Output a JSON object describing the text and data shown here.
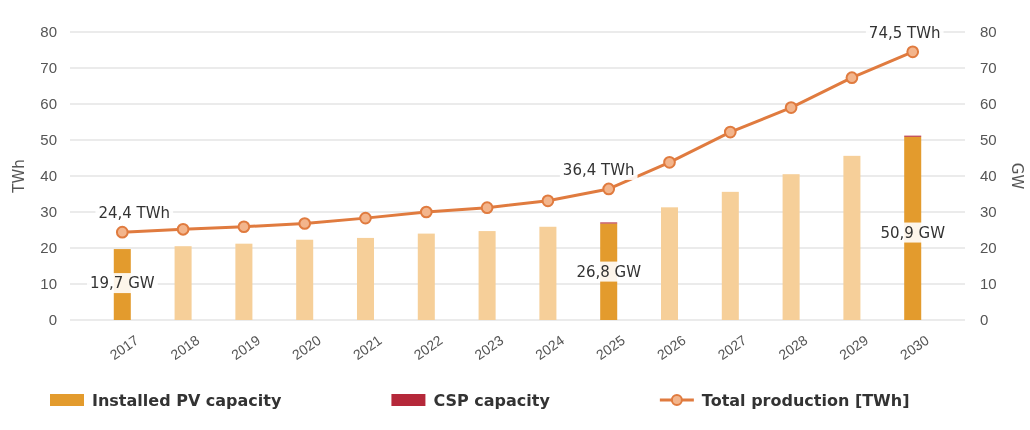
{
  "chart_data": {
    "type": "bar",
    "stacked": true,
    "ylabel": "TWh",
    "y2label": "GW",
    "categories": [
      "2017",
      "2018",
      "2019",
      "2020",
      "2021",
      "2022",
      "2023",
      "2024",
      "2025",
      "2026",
      "2027",
      "2028",
      "2029",
      "2030"
    ],
    "series": [
      {
        "name": "Installed PV capacity",
        "color": "#e39b2d",
        "colors": [
          "#e39b2d",
          "#f6cf99",
          "#f6cf99",
          "#f6cf99",
          "#f6cf99",
          "#f6cf99",
          "#f6cf99",
          "#f6cf99",
          "#e39b2d",
          "#f6cf99",
          "#f6cf99",
          "#f6cf99",
          "#f6cf99",
          "#e39b2d"
        ],
        "values": [
          19.7,
          20.5,
          21.2,
          22.3,
          22.8,
          24.0,
          24.7,
          25.9,
          26.8,
          31.3,
          35.6,
          40.5,
          45.6,
          50.9
        ],
        "value_labels": [
          "19,7 GW",
          null,
          null,
          null,
          null,
          null,
          null,
          null,
          "26,8 GW",
          null,
          null,
          null,
          null,
          "50,9 GW"
        ]
      },
      {
        "name": "CSP capacity",
        "color": "#b5283a",
        "values": [
          0,
          0,
          0,
          0,
          0,
          0,
          0,
          0,
          0.3,
          0,
          0,
          0,
          0,
          0.3
        ]
      },
      {
        "name": "Total production [TWh]",
        "type": "line",
        "color": "#e07b3f",
        "marker": "circle",
        "values": [
          24.4,
          25.2,
          25.9,
          26.8,
          28.3,
          30.0,
          31.2,
          33.1,
          36.4,
          43.8,
          52.2,
          59.0,
          67.3,
          74.5
        ],
        "value_labels": [
          "24,4 TWh",
          null,
          null,
          null,
          null,
          null,
          null,
          null,
          "36,4 TWh",
          null,
          null,
          null,
          null,
          "74,5 TWh"
        ]
      }
    ],
    "ylim": [
      0,
      80
    ],
    "yticks": [
      0,
      10,
      20,
      30,
      40,
      50,
      60,
      70,
      80
    ],
    "y2lim": [
      0,
      80
    ],
    "y2ticks": [
      0,
      10,
      20,
      30,
      40,
      50,
      60,
      70,
      80
    ],
    "grid": "y",
    "legend": "bottom"
  }
}
